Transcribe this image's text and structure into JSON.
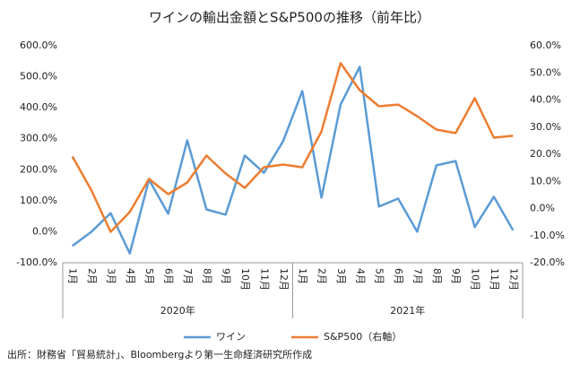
{
  "chart_data": {
    "type": "line",
    "title": "ワインの輸出金額とS&P500の推移（前年比）",
    "categories": [
      "1月",
      "2月",
      "3月",
      "4月",
      "5月",
      "6月",
      "7月",
      "8月",
      "9月",
      "10月",
      "11月",
      "12月",
      "1月",
      "2月",
      "3月",
      "4月",
      "5月",
      "6月",
      "7月",
      "8月",
      "9月",
      "10月",
      "11月",
      "12月"
    ],
    "x_groups": [
      "2020年",
      "2021年"
    ],
    "series": [
      {
        "name": "ワイン",
        "color": "#5b9bd5",
        "axis": "y",
        "values": [
          -46,
          0,
          60,
          -70,
          168,
          58,
          295,
          72,
          55,
          246,
          190,
          292,
          454,
          110,
          410,
          532,
          81,
          107,
          0,
          214,
          228,
          15,
          113,
          5
        ]
      },
      {
        "name": "S&P500（右軸）",
        "color": "#ed7d31",
        "axis": "y2",
        "values": [
          19.2,
          6.6,
          -8.6,
          -1.3,
          10.9,
          5.3,
          9.6,
          19.5,
          12.9,
          7.6,
          15.2,
          16.2,
          15.2,
          28.4,
          53.6,
          43.6,
          37.7,
          38.3,
          34.0,
          29.1,
          27.8,
          40.7,
          26.1,
          26.8
        ]
      }
    ],
    "ylim": [
      -100,
      600
    ],
    "yticks": [
      {
        "value": -100,
        "label": "-100.0%"
      },
      {
        "value": 0,
        "label": "0.0%"
      },
      {
        "value": 100,
        "label": "100.0%"
      },
      {
        "value": 200,
        "label": "200.0%"
      },
      {
        "value": 300,
        "label": "300.0%"
      },
      {
        "value": 400,
        "label": "400.0%"
      },
      {
        "value": 500,
        "label": "500.0%"
      },
      {
        "value": 600,
        "label": "600.0%"
      }
    ],
    "y2lim": [
      -20,
      60
    ],
    "y2ticks": [
      {
        "value": -20,
        "label": "-20.0%"
      },
      {
        "value": -10,
        "label": "-10.0%"
      },
      {
        "value": 0,
        "label": "0.0%"
      },
      {
        "value": 10,
        "label": "10.0%"
      },
      {
        "value": 20,
        "label": "20.0%"
      },
      {
        "value": 30,
        "label": "30.0%"
      },
      {
        "value": 40,
        "label": "40.0%"
      },
      {
        "value": 50,
        "label": "50.0%"
      },
      {
        "value": 60,
        "label": "60.0%"
      }
    ],
    "grid": false,
    "legend": "bottom",
    "source": "出所：財務省「貿易統計」、Bloombergより第一生命経済研究所作成"
  }
}
